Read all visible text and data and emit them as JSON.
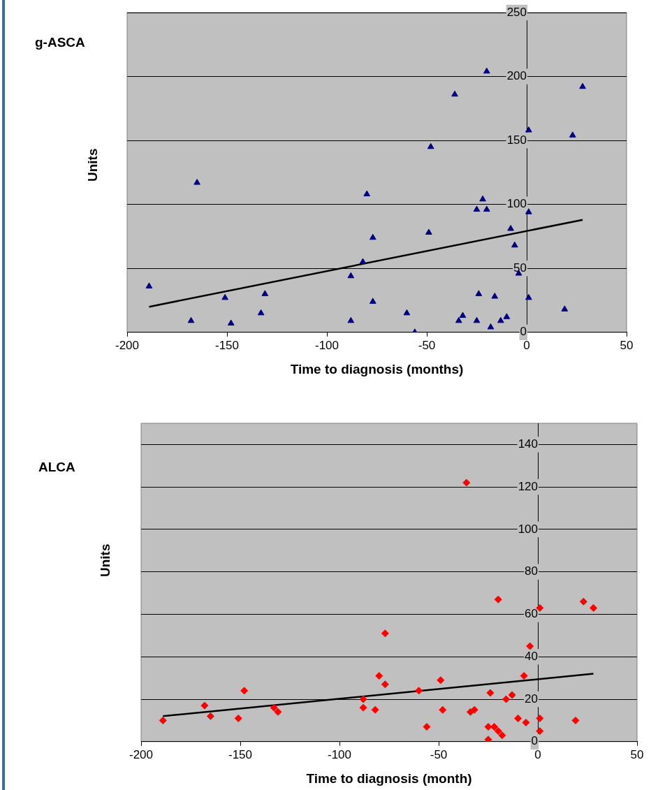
{
  "chart_data": [
    {
      "type": "scatter",
      "title": "g-ASCA",
      "xlabel": "Time to diagnosis (months)",
      "ylabel": "Units",
      "xlim": [
        -200,
        50
      ],
      "xticks": [
        -200,
        -150,
        -100,
        -50,
        0,
        50
      ],
      "ylim": [
        0,
        250
      ],
      "yticks": [
        0,
        50,
        100,
        150,
        200,
        250
      ],
      "grid": "y",
      "series": [
        {
          "type": "scatter",
          "color": "#000080",
          "marker": "triangle",
          "x": [
            -189,
            -168,
            -165,
            -151,
            -148,
            -133,
            -131,
            -88,
            -88,
            -82,
            -80,
            -77,
            -77,
            -60,
            -56,
            -49,
            -48,
            -36,
            -34,
            -32,
            -25,
            -25,
            -24,
            -22,
            -20,
            -20,
            -18,
            -16,
            -13,
            -10,
            -8,
            -6,
            -4,
            1,
            1,
            1,
            19,
            23,
            28
          ],
          "values": [
            36,
            9,
            117,
            27,
            7,
            15,
            30,
            44,
            9,
            55,
            108,
            74,
            24,
            15,
            0,
            78,
            145,
            186,
            9,
            13,
            96,
            9,
            30,
            104,
            96,
            204,
            4,
            28,
            9,
            12,
            81,
            68,
            46,
            158,
            94,
            27,
            18,
            154,
            192
          ]
        },
        {
          "type": "line",
          "color": "#000000",
          "marker": "none",
          "x": [
            -189,
            28
          ],
          "values": [
            20,
            88
          ]
        }
      ]
    },
    {
      "type": "scatter",
      "title": "ALCA",
      "xlabel": "Time to diagnosis (month)",
      "ylabel": "Units",
      "xlim": [
        -200,
        50
      ],
      "xticks": [
        -200,
        -150,
        -100,
        -50,
        0,
        50
      ],
      "ylim": [
        0,
        150
      ],
      "yticks": [
        0,
        20,
        40,
        60,
        80,
        100,
        120,
        140
      ],
      "grid": "y",
      "series": [
        {
          "type": "scatter",
          "color": "#ff0000",
          "marker": "diamond",
          "x": [
            -189,
            -168,
            -165,
            -151,
            -148,
            -133,
            -131,
            -88,
            -88,
            -82,
            -80,
            -77,
            -77,
            -60,
            -56,
            -49,
            -48,
            -36,
            -34,
            -32,
            -25,
            -25,
            -24,
            -22,
            -20,
            -20,
            -18,
            -16,
            -13,
            -10,
            -7,
            -6,
            -4,
            1,
            1,
            1,
            19,
            23,
            28
          ],
          "values": [
            10,
            17,
            12,
            11,
            24,
            16,
            14,
            20,
            16,
            15,
            31,
            27,
            51,
            24,
            7,
            29,
            15,
            122,
            14,
            15,
            7,
            1,
            23,
            7,
            67,
            5,
            3,
            20,
            22,
            11,
            31,
            9,
            45,
            63,
            11,
            5,
            10,
            66,
            63
          ]
        },
        {
          "type": "line",
          "color": "#000000",
          "marker": "none",
          "x": [
            -189,
            28
          ],
          "values": [
            12,
            32
          ]
        }
      ]
    }
  ]
}
